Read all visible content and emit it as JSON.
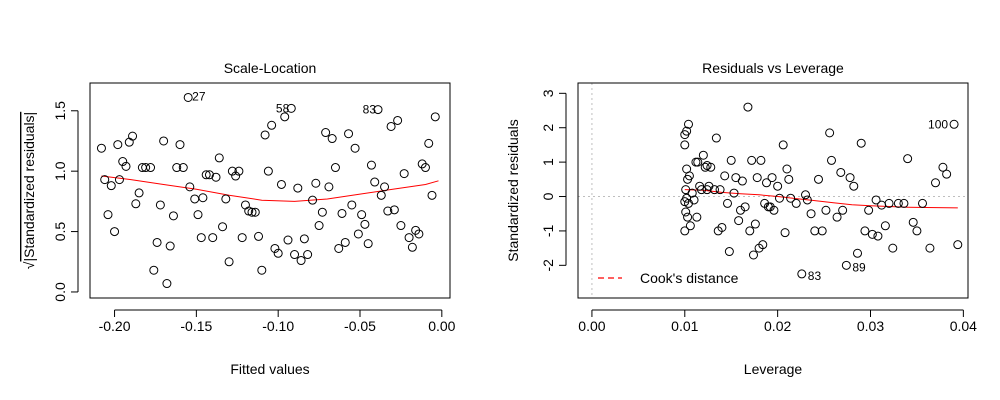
{
  "chart_data": [
    {
      "type": "scatter",
      "title": "Scale-Location",
      "xlabel": "Fitted values",
      "ylabel_prefix": "√",
      "ylabel": "Standardized residuals",
      "xlim": [
        -0.215,
        0.005
      ],
      "ylim": [
        -0.05,
        1.73
      ],
      "x_ticks": [
        -0.2,
        -0.15,
        -0.1,
        -0.05,
        0.0
      ],
      "x_tick_labels": [
        "-0.20",
        "-0.15",
        "-0.10",
        "-0.05",
        "0.00"
      ],
      "y_ticks": [
        0.0,
        0.5,
        1.0,
        1.5
      ],
      "y_tick_labels": [
        "0.0",
        "0.5",
        "1.0",
        "1.5"
      ],
      "colors": {
        "points": "#000000",
        "smooth": "#ff0000",
        "frame": "#000000"
      },
      "points": [
        [
          -0.208,
          1.19
        ],
        [
          -0.206,
          0.93
        ],
        [
          -0.204,
          0.64
        ],
        [
          -0.202,
          0.88
        ],
        [
          -0.2,
          0.5
        ],
        [
          -0.198,
          1.22
        ],
        [
          -0.197,
          0.93
        ],
        [
          -0.195,
          1.08
        ],
        [
          -0.193,
          1.04
        ],
        [
          -0.191,
          1.24
        ],
        [
          -0.189,
          1.29
        ],
        [
          -0.187,
          0.73
        ],
        [
          -0.185,
          0.82
        ],
        [
          -0.183,
          1.03
        ],
        [
          -0.181,
          1.03
        ],
        [
          -0.178,
          1.03
        ],
        [
          -0.176,
          0.18
        ],
        [
          -0.174,
          0.41
        ],
        [
          -0.172,
          0.72
        ],
        [
          -0.17,
          1.25
        ],
        [
          -0.168,
          0.07
        ],
        [
          -0.166,
          0.38
        ],
        [
          -0.164,
          0.63
        ],
        [
          -0.162,
          1.03
        ],
        [
          -0.16,
          1.22
        ],
        [
          -0.158,
          1.03
        ],
        [
          -0.155,
          1.61
        ],
        [
          -0.154,
          0.87
        ],
        [
          -0.151,
          0.77
        ],
        [
          -0.149,
          0.64
        ],
        [
          -0.147,
          0.45
        ],
        [
          -0.146,
          0.78
        ],
        [
          -0.144,
          0.97
        ],
        [
          -0.142,
          0.97
        ],
        [
          -0.14,
          0.45
        ],
        [
          -0.138,
          0.95
        ],
        [
          -0.136,
          1.11
        ],
        [
          -0.134,
          0.54
        ],
        [
          -0.132,
          0.77
        ],
        [
          -0.13,
          0.25
        ],
        [
          -0.128,
          1.0
        ],
        [
          -0.126,
          0.96
        ],
        [
          -0.124,
          1.0
        ],
        [
          -0.122,
          0.45
        ],
        [
          -0.12,
          0.72
        ],
        [
          -0.118,
          0.67
        ],
        [
          -0.116,
          0.66
        ],
        [
          -0.114,
          0.66
        ],
        [
          -0.112,
          0.46
        ],
        [
          -0.11,
          0.18
        ],
        [
          -0.108,
          1.3
        ],
        [
          -0.106,
          1.0
        ],
        [
          -0.104,
          1.38
        ],
        [
          -0.102,
          0.36
        ],
        [
          -0.1,
          0.32
        ],
        [
          -0.098,
          0.89
        ],
        [
          -0.096,
          1.45
        ],
        [
          -0.094,
          0.43
        ],
        [
          -0.092,
          1.52
        ],
        [
          -0.09,
          0.31
        ],
        [
          -0.088,
          0.86
        ],
        [
          -0.086,
          0.26
        ],
        [
          -0.084,
          0.44
        ],
        [
          -0.082,
          0.31
        ],
        [
          -0.079,
          0.76
        ],
        [
          -0.077,
          0.9
        ],
        [
          -0.075,
          0.55
        ],
        [
          -0.073,
          0.66
        ],
        [
          -0.071,
          1.32
        ],
        [
          -0.069,
          0.87
        ],
        [
          -0.067,
          1.27
        ],
        [
          -0.065,
          1.03
        ],
        [
          -0.063,
          0.36
        ],
        [
          -0.061,
          0.65
        ],
        [
          -0.059,
          0.41
        ],
        [
          -0.057,
          1.31
        ],
        [
          -0.055,
          0.72
        ],
        [
          -0.053,
          1.19
        ],
        [
          -0.051,
          0.48
        ],
        [
          -0.049,
          0.64
        ],
        [
          -0.047,
          0.56
        ],
        [
          -0.045,
          0.4
        ],
        [
          -0.043,
          1.05
        ],
        [
          -0.041,
          0.91
        ],
        [
          -0.039,
          1.51
        ],
        [
          -0.037,
          0.8
        ],
        [
          -0.035,
          0.87
        ],
        [
          -0.033,
          0.67
        ],
        [
          -0.031,
          1.37
        ],
        [
          -0.029,
          0.68
        ],
        [
          -0.027,
          1.42
        ],
        [
          -0.025,
          0.55
        ],
        [
          -0.023,
          0.98
        ],
        [
          -0.02,
          0.45
        ],
        [
          -0.018,
          0.37
        ],
        [
          -0.016,
          0.51
        ],
        [
          -0.014,
          0.48
        ],
        [
          -0.012,
          1.06
        ],
        [
          -0.01,
          1.03
        ],
        [
          -0.008,
          1.23
        ],
        [
          -0.006,
          0.8
        ],
        [
          -0.004,
          1.45
        ]
      ],
      "smooth": [
        [
          -0.208,
          0.96
        ],
        [
          -0.19,
          0.93
        ],
        [
          -0.17,
          0.89
        ],
        [
          -0.15,
          0.85
        ],
        [
          -0.13,
          0.8
        ],
        [
          -0.11,
          0.76
        ],
        [
          -0.09,
          0.75
        ],
        [
          -0.07,
          0.77
        ],
        [
          -0.05,
          0.81
        ],
        [
          -0.03,
          0.85
        ],
        [
          -0.01,
          0.89
        ],
        [
          -0.002,
          0.92
        ]
      ],
      "annotations": [
        {
          "label": "27",
          "x": -0.155,
          "y": 1.61
        },
        {
          "label": "58",
          "x": -0.092,
          "y": 1.52
        },
        {
          "label": "83",
          "x": -0.039,
          "y": 1.51
        }
      ]
    },
    {
      "type": "scatter",
      "title": "Residuals vs Leverage",
      "xlabel": "Leverage",
      "ylabel": "Standardized residuals",
      "xlim": [
        -0.0015,
        0.0405
      ],
      "ylim": [
        -2.95,
        3.3
      ],
      "x_ticks": [
        0.0,
        0.01,
        0.02,
        0.03,
        0.04
      ],
      "x_tick_labels": [
        "0.00",
        "0.01",
        "0.02",
        "0.03",
        "0.04"
      ],
      "y_ticks": [
        -2,
        -1,
        0,
        1,
        2,
        3
      ],
      "y_tick_labels": [
        "-2",
        "-1",
        "0",
        "1",
        "2",
        "3"
      ],
      "colors": {
        "points": "#000000",
        "smooth": "#ff0000",
        "cooks": "#ff0000",
        "reference": "#bebebe",
        "frame": "#000000"
      },
      "legend": {
        "label": "Cook's distance",
        "position": "bottom-left"
      },
      "points": [
        [
          0.01,
          1.8
        ],
        [
          0.0102,
          1.9
        ],
        [
          0.0104,
          2.1
        ],
        [
          0.01,
          1.5
        ],
        [
          0.0102,
          0.8
        ],
        [
          0.0103,
          0.5
        ],
        [
          0.0101,
          0.2
        ],
        [
          0.0102,
          -0.05
        ],
        [
          0.01,
          -0.15
        ],
        [
          0.0104,
          -0.2
        ],
        [
          0.0101,
          -0.45
        ],
        [
          0.0103,
          -0.6
        ],
        [
          0.01,
          -1.0
        ],
        [
          0.0106,
          -0.85
        ],
        [
          0.0108,
          0.1
        ],
        [
          0.011,
          -0.1
        ],
        [
          0.0105,
          0.6
        ],
        [
          0.0112,
          1.0
        ],
        [
          0.0114,
          1.0
        ],
        [
          0.0116,
          0.3
        ],
        [
          0.0113,
          -0.6
        ],
        [
          0.0118,
          0.2
        ],
        [
          0.012,
          1.2
        ],
        [
          0.0122,
          0.85
        ],
        [
          0.0124,
          0.9
        ],
        [
          0.0126,
          0.3
        ],
        [
          0.0124,
          0.2
        ],
        [
          0.0128,
          0.85
        ],
        [
          0.0132,
          0.2
        ],
        [
          0.0134,
          1.7
        ],
        [
          0.0136,
          -1.0
        ],
        [
          0.0138,
          0.2
        ],
        [
          0.014,
          -0.9
        ],
        [
          0.0143,
          0.6
        ],
        [
          0.0146,
          -0.2
        ],
        [
          0.0148,
          -1.6
        ],
        [
          0.015,
          1.05
        ],
        [
          0.0153,
          0.1
        ],
        [
          0.0155,
          0.55
        ],
        [
          0.0158,
          -0.7
        ],
        [
          0.016,
          -0.4
        ],
        [
          0.0162,
          0.45
        ],
        [
          0.0165,
          -0.3
        ],
        [
          0.0168,
          2.6
        ],
        [
          0.017,
          -1.0
        ],
        [
          0.0172,
          1.05
        ],
        [
          0.0174,
          -1.7
        ],
        [
          0.0176,
          -0.8
        ],
        [
          0.0178,
          0.55
        ],
        [
          0.018,
          -1.5
        ],
        [
          0.0182,
          1.05
        ],
        [
          0.0184,
          -1.4
        ],
        [
          0.0186,
          -0.2
        ],
        [
          0.0188,
          0.4
        ],
        [
          0.019,
          -0.3
        ],
        [
          0.0192,
          -0.3
        ],
        [
          0.0194,
          0.55
        ],
        [
          0.0196,
          -0.4
        ],
        [
          0.02,
          0.3
        ],
        [
          0.0202,
          -0.05
        ],
        [
          0.0206,
          1.5
        ],
        [
          0.0208,
          -1.05
        ],
        [
          0.021,
          0.8
        ],
        [
          0.0212,
          0.5
        ],
        [
          0.0214,
          -0.05
        ],
        [
          0.022,
          -0.2
        ],
        [
          0.0226,
          -2.25
        ],
        [
          0.023,
          0.05
        ],
        [
          0.0232,
          -0.1
        ],
        [
          0.0236,
          -0.5
        ],
        [
          0.024,
          -1.0
        ],
        [
          0.0244,
          0.5
        ],
        [
          0.0248,
          -1.0
        ],
        [
          0.0252,
          -0.4
        ],
        [
          0.0256,
          1.85
        ],
        [
          0.0258,
          1.05
        ],
        [
          0.0264,
          -0.6
        ],
        [
          0.0268,
          0.7
        ],
        [
          0.027,
          -0.4
        ],
        [
          0.0274,
          -2.0
        ],
        [
          0.0278,
          0.55
        ],
        [
          0.0282,
          0.3
        ],
        [
          0.0286,
          -1.65
        ],
        [
          0.029,
          1.55
        ],
        [
          0.0294,
          -1.0
        ],
        [
          0.0298,
          -0.4
        ],
        [
          0.0302,
          -1.1
        ],
        [
          0.0306,
          -0.1
        ],
        [
          0.0308,
          -1.15
        ],
        [
          0.0312,
          -0.25
        ],
        [
          0.0316,
          -0.85
        ],
        [
          0.032,
          -0.2
        ],
        [
          0.0324,
          -1.5
        ],
        [
          0.033,
          -0.2
        ],
        [
          0.0336,
          -0.2
        ],
        [
          0.034,
          1.1
        ],
        [
          0.0346,
          -0.75
        ],
        [
          0.035,
          -1.0
        ],
        [
          0.0356,
          -0.2
        ],
        [
          0.0364,
          -1.5
        ],
        [
          0.037,
          0.4
        ],
        [
          0.0378,
          0.85
        ],
        [
          0.0382,
          0.65
        ],
        [
          0.039,
          2.1
        ],
        [
          0.0394,
          -1.4
        ]
      ],
      "smooth": [
        [
          0.01,
          0.2
        ],
        [
          0.012,
          0.18
        ],
        [
          0.014,
          0.12
        ],
        [
          0.016,
          0.08
        ],
        [
          0.018,
          0.05
        ],
        [
          0.02,
          0.0
        ],
        [
          0.022,
          -0.06
        ],
        [
          0.024,
          -0.12
        ],
        [
          0.026,
          -0.18
        ],
        [
          0.028,
          -0.24
        ],
        [
          0.03,
          -0.27
        ],
        [
          0.032,
          -0.29
        ],
        [
          0.034,
          -0.31
        ],
        [
          0.036,
          -0.32
        ],
        [
          0.0394,
          -0.33
        ]
      ],
      "annotations": [
        {
          "label": "100",
          "x": 0.039,
          "y": 2.1,
          "side": "left"
        },
        {
          "label": "83",
          "x": 0.0226,
          "y": -2.25,
          "side": "right"
        },
        {
          "label": "89",
          "x": 0.0274,
          "y": -2.0,
          "side": "right"
        }
      ]
    }
  ]
}
